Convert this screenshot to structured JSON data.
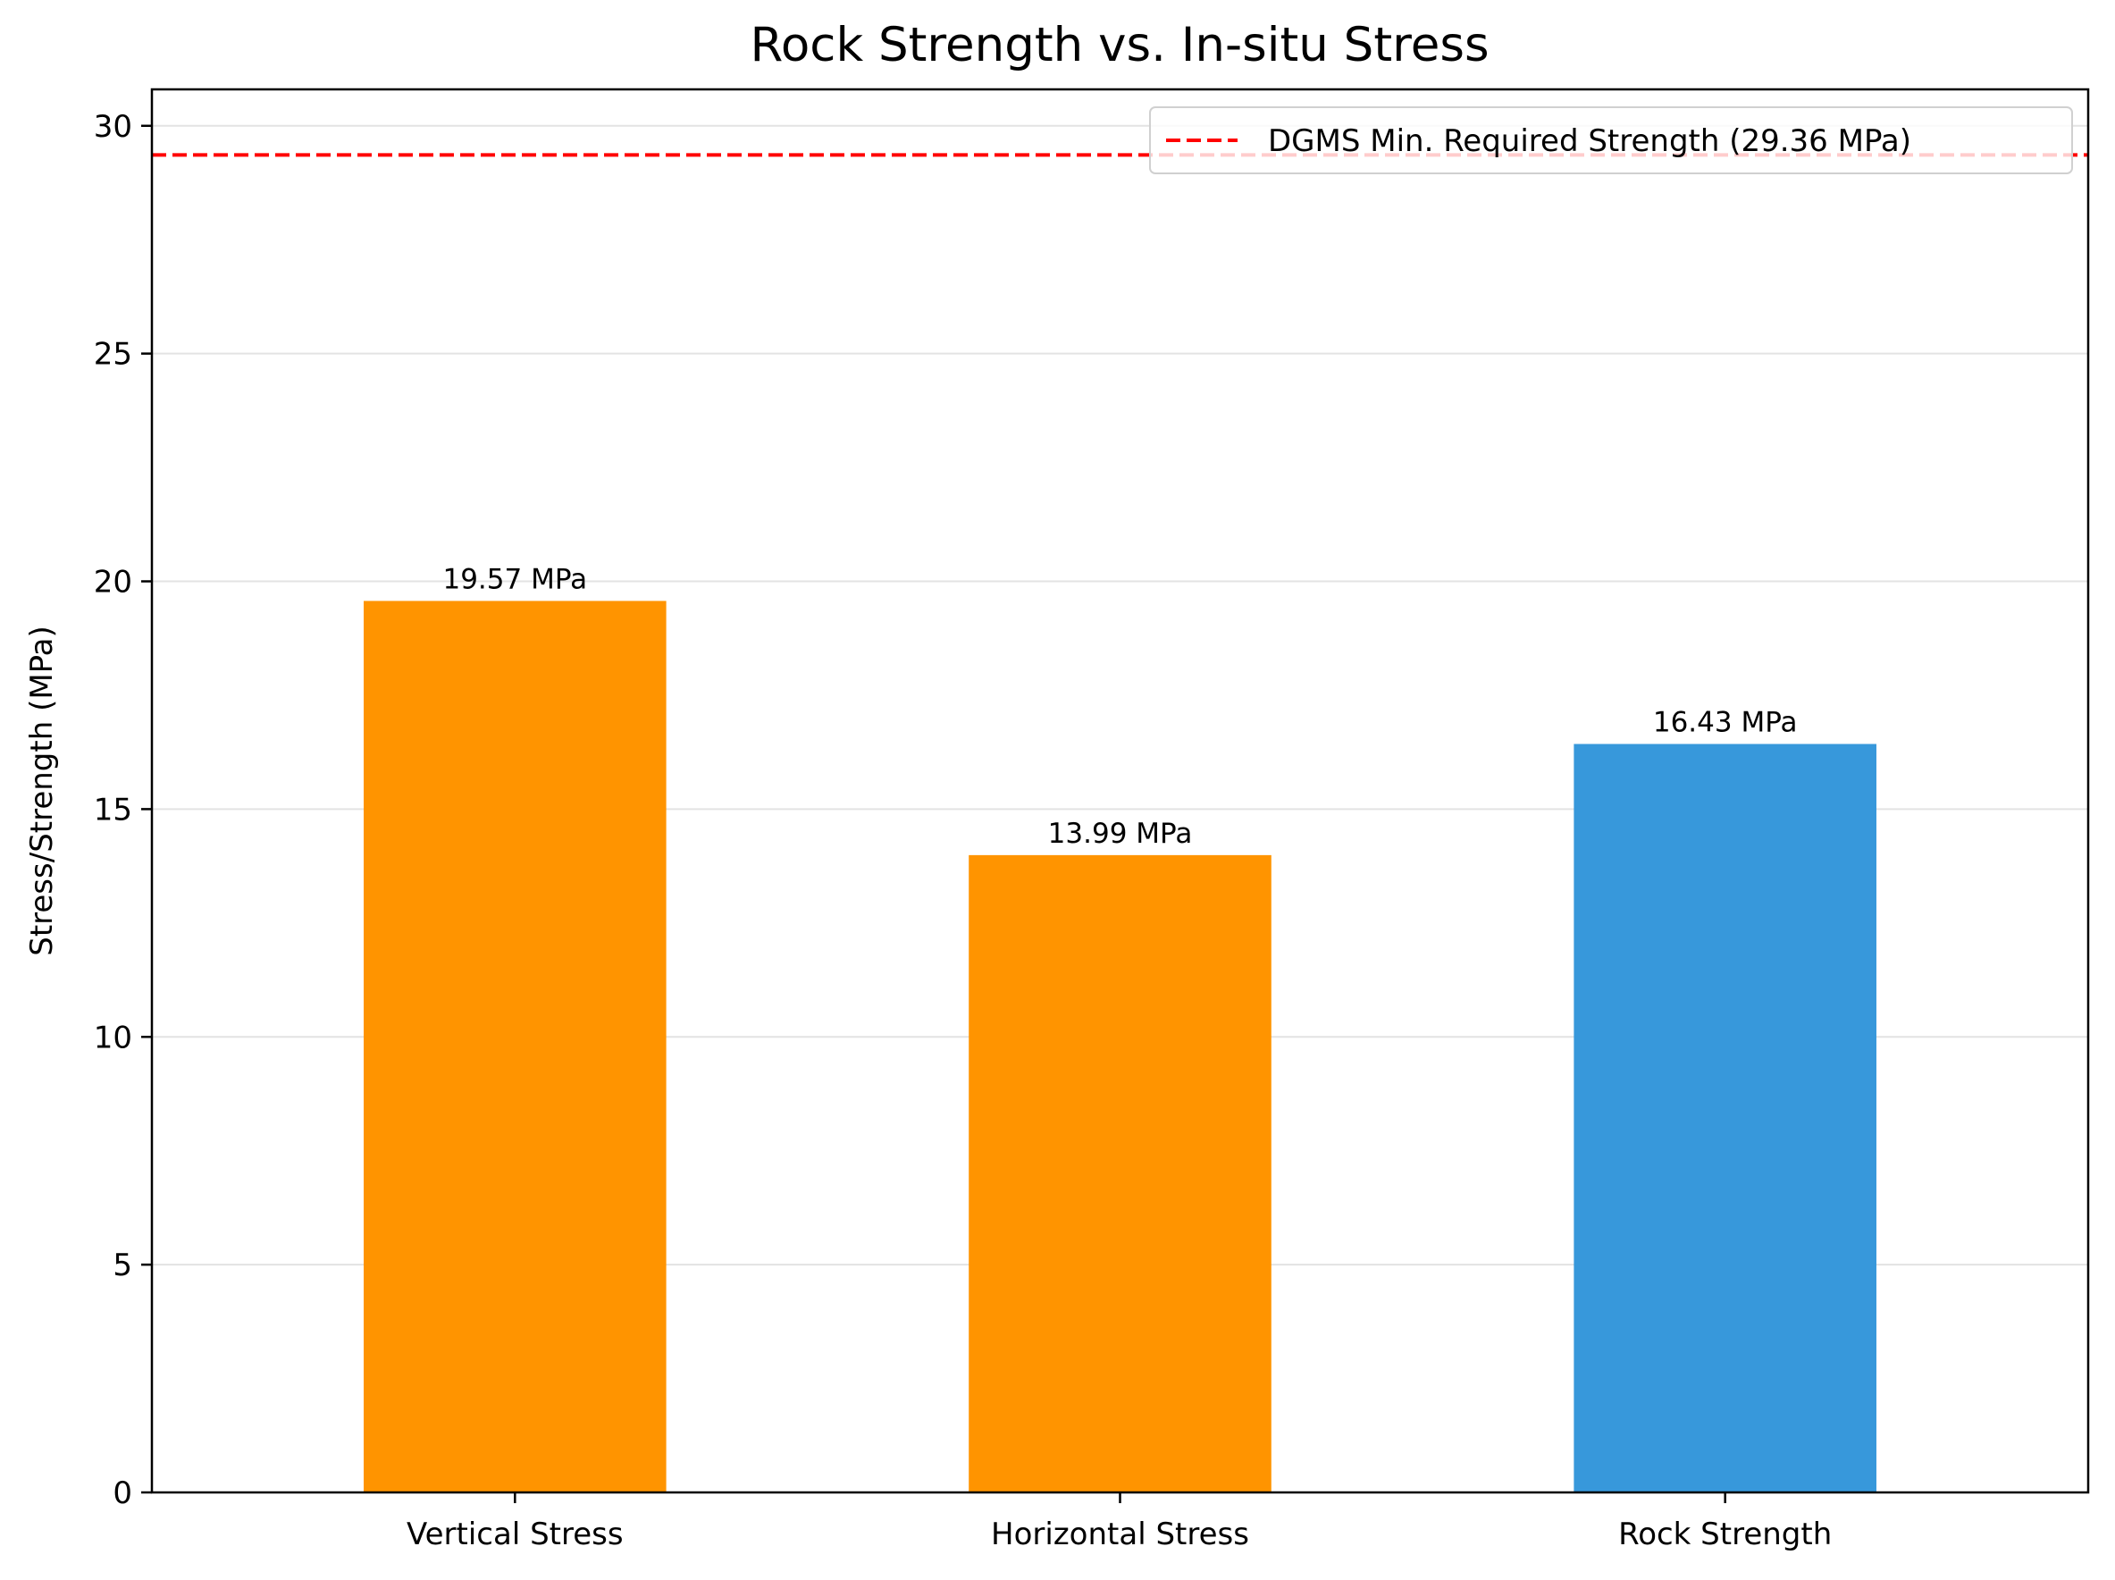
{
  "chart_data": {
    "type": "bar",
    "title": "Rock Strength vs. In-situ Stress",
    "xlabel": "",
    "ylabel": "Stress/Strength (MPa)",
    "categories": [
      "Vertical Stress",
      "Horizontal Stress",
      "Rock Strength"
    ],
    "values": [
      19.57,
      13.99,
      16.43
    ],
    "bar_labels": [
      "19.57 MPa",
      "13.99 MPa",
      "16.43 MPa"
    ],
    "bar_colors": [
      "#ff9400",
      "#ff9400",
      "#3798db"
    ],
    "ylim": [
      0,
      30.8
    ],
    "yticks": [
      0,
      5,
      10,
      15,
      20,
      25,
      30
    ],
    "ytick_labels": [
      "0",
      "5",
      "10",
      "15",
      "20",
      "25",
      "30"
    ],
    "grid": "horizontal",
    "reference_line": {
      "value": 29.36,
      "color": "#ff0000",
      "style": "dashed",
      "label": "DGMS Min. Required Strength (29.36 MPa)"
    },
    "legend": {
      "position": "top-right",
      "entries": [
        "DGMS Min. Required Strength (29.36 MPa)"
      ]
    }
  }
}
